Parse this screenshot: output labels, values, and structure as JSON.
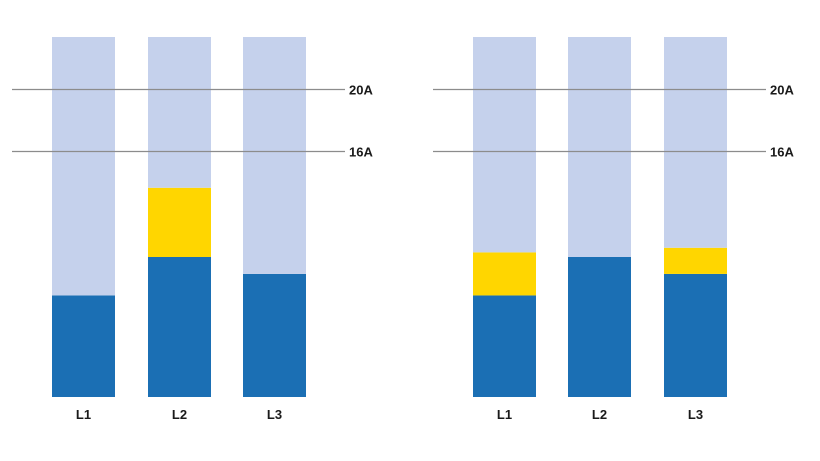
{
  "chart_data": [
    {
      "type": "bar",
      "stacked": true,
      "categories": [
        "L1",
        "L2",
        "L3"
      ],
      "ylim": [
        0,
        23.4
      ],
      "reference_lines": [
        {
          "value": 20,
          "label": "20A"
        },
        {
          "value": 16,
          "label": "16A"
        }
      ],
      "series": [
        {
          "values": [
            6.6,
            9.1,
            8.0
          ],
          "color": "#1b6fb4"
        },
        {
          "values": [
            0,
            4.5,
            0
          ],
          "color": "#ffd600"
        },
        {
          "values": [
            16.8,
            9.8,
            15.4
          ],
          "color": "#c5d1ec"
        }
      ]
    },
    {
      "type": "bar",
      "stacked": true,
      "categories": [
        "L1",
        "L2",
        "L3"
      ],
      "ylim": [
        0,
        23.4
      ],
      "reference_lines": [
        {
          "value": 20,
          "label": "20A"
        },
        {
          "value": 16,
          "label": "16A"
        }
      ],
      "series": [
        {
          "values": [
            6.6,
            9.1,
            8.0
          ],
          "color": "#1b6fb4"
        },
        {
          "values": [
            2.8,
            0,
            1.7
          ],
          "color": "#ffd600"
        },
        {
          "values": [
            14.0,
            14.3,
            13.7
          ],
          "color": "#c5d1ec"
        }
      ]
    }
  ]
}
